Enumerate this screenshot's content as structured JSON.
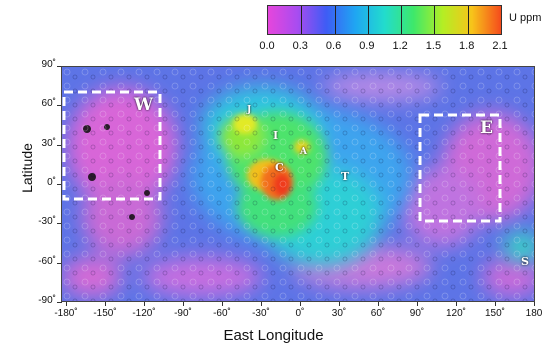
{
  "colorscale": {
    "unit": "U ppm",
    "ticks": [
      "0.0",
      "0.3",
      "0.6",
      "0.9",
      "1.2",
      "1.5",
      "1.8",
      "2.1"
    ],
    "colors": [
      "#e646dc",
      "#a94cf0",
      "#3e5cf5",
      "#1fa6f2",
      "#22dccd",
      "#3ee86a",
      "#b4ee24",
      "#f7c41a",
      "#f54b1c"
    ]
  },
  "map": {
    "y_ticks": [
      "90˚",
      "60˚",
      "30˚",
      "0˚",
      "-30˚",
      "-60˚",
      "-90˚"
    ],
    "x_ticks": [
      "-180˚",
      "-150˚",
      "-120˚",
      "-90˚",
      "-60˚",
      "-30˚",
      "0˚",
      "30˚",
      "60˚",
      "90˚",
      "120˚",
      "150˚",
      "180"
    ],
    "y_label": "Latitude",
    "x_label": "East Longitude",
    "regions": [
      {
        "id": "W",
        "label": "W",
        "dashed_box": true
      },
      {
        "id": "E",
        "label": "E",
        "dashed_box": true
      },
      {
        "id": "I",
        "label": "I",
        "dashed_box": false
      },
      {
        "id": "C",
        "label": "C",
        "dashed_box": false
      },
      {
        "id": "A",
        "label": "A",
        "dashed_box": false
      },
      {
        "id": "T",
        "label": "T",
        "dashed_box": false
      },
      {
        "id": "S",
        "label": "S",
        "dashed_box": false
      },
      {
        "id": "J",
        "label": "J",
        "dashed_box": false
      }
    ]
  }
}
